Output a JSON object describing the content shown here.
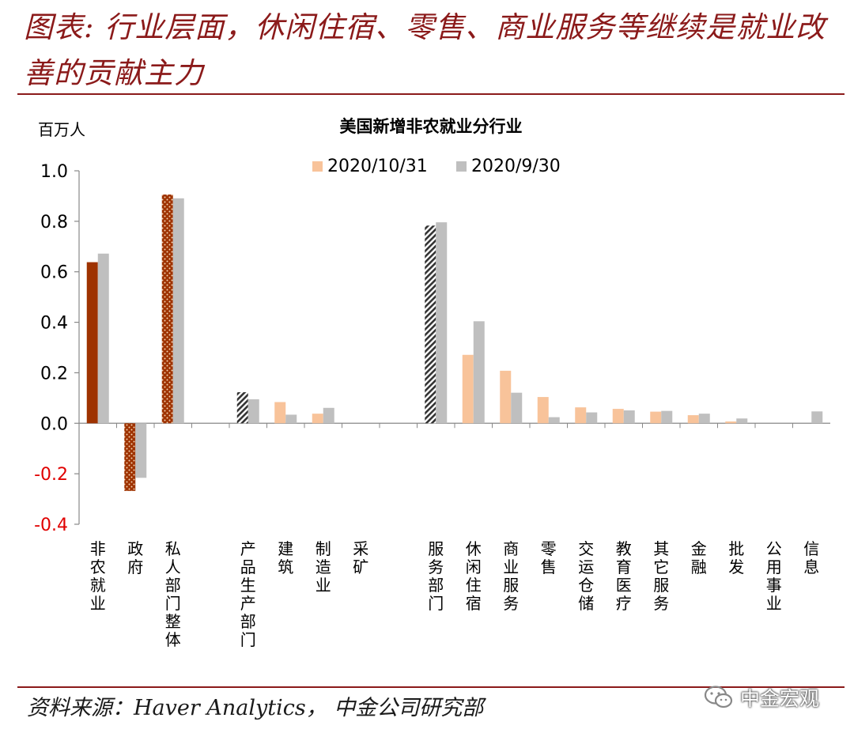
{
  "header": {
    "title": "图表: 行业层面，休闲住宿、零售、商业服务等继续是就业改善的贡献主力"
  },
  "footer": {
    "source": "资料来源：Haver Analytics， 中金公司研究部",
    "watermark": "中金宏观"
  },
  "chart_data": {
    "type": "bar",
    "title": "美国新增非农就业分行业",
    "ylabel": "百万人",
    "ylim": [
      -0.4,
      1.0
    ],
    "ytick_step": 0.2,
    "grid": false,
    "legend_position": "top",
    "categories": [
      "非农就业",
      "政府",
      "私人部门整体",
      "",
      "产品生产部门",
      "建筑",
      "制造业",
      "采矿",
      "",
      "服务部门",
      "休闲住宿",
      "商业服务",
      "零售",
      "交运仓储",
      "教育医疗",
      "其它服务",
      "金融",
      "批发",
      "公用事业",
      "信息"
    ],
    "series": [
      {
        "name": "2020/10/31",
        "color": "#f8c39a",
        "values": [
          0.638,
          -0.268,
          0.906,
          null,
          0.123,
          0.084,
          0.038,
          0.0,
          null,
          0.783,
          0.271,
          0.208,
          0.104,
          0.063,
          0.057,
          0.046,
          0.032,
          0.007,
          0.0,
          0.0
        ]
      },
      {
        "name": "2020/9/30",
        "color": "#bfbfbf",
        "values": [
          0.672,
          -0.216,
          0.891,
          null,
          0.095,
          0.034,
          0.061,
          0.0,
          null,
          0.796,
          0.404,
          0.121,
          0.024,
          0.043,
          0.051,
          0.049,
          0.038,
          0.019,
          0.0,
          0.047
        ]
      }
    ],
    "highlight": {
      "solid_color": "#9e3200",
      "dotted_color": "#9e3200",
      "hatched_color": "#333333",
      "solid": [
        0
      ],
      "dotted": [
        1,
        2
      ],
      "hatched": [
        4,
        9
      ]
    },
    "negative_tick_color": "#e00000"
  }
}
